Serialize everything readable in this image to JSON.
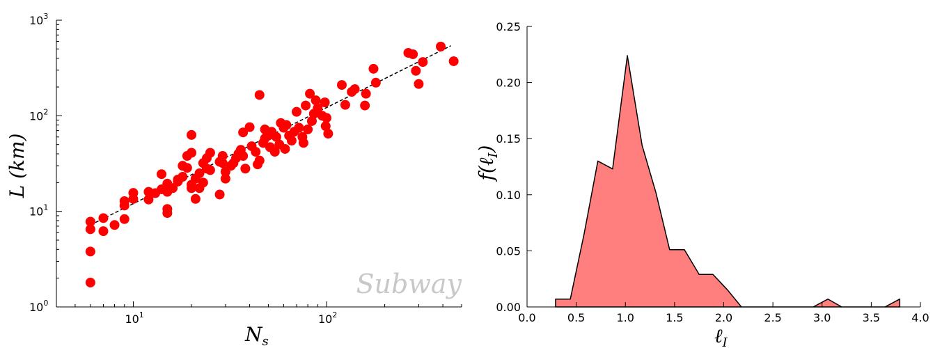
{
  "chart_data": [
    {
      "type": "scatter",
      "watermark": "Subway",
      "xlabel": "N_s",
      "ylabel": "L (km)",
      "xscale": "log",
      "yscale": "log",
      "xlim": [
        4,
        500
      ],
      "ylim": [
        1,
        1000
      ],
      "x_ticks": [
        {
          "base": "10",
          "exp": "1",
          "value": 10
        },
        {
          "base": "10",
          "exp": "2",
          "value": 100
        }
      ],
      "y_ticks": [
        {
          "base": "10",
          "exp": "0",
          "value": 1
        },
        {
          "base": "10",
          "exp": "1",
          "value": 10
        },
        {
          "base": "10",
          "exp": "2",
          "value": 100
        },
        {
          "base": "10",
          "exp": "3",
          "value": 1000
        }
      ],
      "marker_color": "#ff0000",
      "fit_line": {
        "style": "dashed",
        "color": "#000000",
        "x": [
          6,
          440
        ],
        "y": [
          7.2,
          540
        ]
      },
      "points": [
        [
          6,
          1.8
        ],
        [
          6,
          3.8
        ],
        [
          6,
          6.5
        ],
        [
          6,
          7.8
        ],
        [
          7,
          6.2
        ],
        [
          7,
          8.5
        ],
        [
          8,
          7.2
        ],
        [
          9,
          8.3
        ],
        [
          9,
          11.5
        ],
        [
          9,
          12.8
        ],
        [
          10,
          13.5
        ],
        [
          10,
          15.6
        ],
        [
          12,
          13.3
        ],
        [
          12,
          16
        ],
        [
          13,
          15.5
        ],
        [
          14,
          24.5
        ],
        [
          14,
          17
        ],
        [
          15,
          9.6
        ],
        [
          15,
          10.6
        ],
        [
          15,
          16
        ],
        [
          15,
          19.5
        ],
        [
          16,
          17.5
        ],
        [
          17,
          20.5
        ],
        [
          17,
          21.5
        ],
        [
          18,
          23
        ],
        [
          18,
          30
        ],
        [
          19,
          28.5
        ],
        [
          19,
          38
        ],
        [
          20,
          19
        ],
        [
          20,
          17.5
        ],
        [
          20,
          41
        ],
        [
          20,
          63
        ],
        [
          21,
          13.5
        ],
        [
          21,
          22
        ],
        [
          22,
          25
        ],
        [
          22,
          17.5
        ],
        [
          23,
          20
        ],
        [
          23,
          32
        ],
        [
          24,
          28
        ],
        [
          24,
          36
        ],
        [
          25,
          41
        ],
        [
          25,
          27
        ],
        [
          28,
          15
        ],
        [
          28,
          33
        ],
        [
          29,
          38
        ],
        [
          29,
          32
        ],
        [
          30,
          22
        ],
        [
          30,
          26
        ],
        [
          32,
          30
        ],
        [
          33,
          32
        ],
        [
          34,
          36
        ],
        [
          35,
          40
        ],
        [
          36,
          44
        ],
        [
          37,
          38
        ],
        [
          37,
          67
        ],
        [
          38,
          28
        ],
        [
          40,
          76
        ],
        [
          41,
          48
        ],
        [
          43,
          42
        ],
        [
          44,
          31
        ],
        [
          45,
          165
        ],
        [
          45,
          34
        ],
        [
          47,
          52
        ],
        [
          48,
          58
        ],
        [
          48,
          72
        ],
        [
          50,
          62
        ],
        [
          51,
          47
        ],
        [
          52,
          68
        ],
        [
          54,
          42
        ],
        [
          55,
          60
        ],
        [
          57,
          50
        ],
        [
          58,
          84
        ],
        [
          60,
          75
        ],
        [
          61,
          45
        ],
        [
          62,
          80
        ],
        [
          64,
          62
        ],
        [
          66,
          55
        ],
        [
          68,
          68
        ],
        [
          70,
          110
        ],
        [
          72,
          75
        ],
        [
          75,
          60
        ],
        [
          76,
          52
        ],
        [
          78,
          128
        ],
        [
          80,
          72
        ],
        [
          82,
          170
        ],
        [
          84,
          88
        ],
        [
          86,
          105
        ],
        [
          88,
          145
        ],
        [
          90,
          120
        ],
        [
          95,
          100
        ],
        [
          98,
          138
        ],
        [
          99,
          78
        ],
        [
          100,
          95
        ],
        [
          102,
          65
        ],
        [
          120,
          210
        ],
        [
          125,
          130
        ],
        [
          135,
          178
        ],
        [
          140,
          190
        ],
        [
          158,
          128
        ],
        [
          160,
          170
        ],
        [
          175,
          310
        ],
        [
          180,
          222
        ],
        [
          265,
          455
        ],
        [
          280,
          440
        ],
        [
          290,
          295
        ],
        [
          300,
          215
        ],
        [
          315,
          365
        ],
        [
          390,
          530
        ],
        [
          455,
          372
        ]
      ]
    },
    {
      "type": "area",
      "xlabel": "ℓ_I",
      "ylabel": "f(ℓ_I)",
      "xlim": [
        0.0,
        4.0
      ],
      "ylim": [
        0.0,
        0.25
      ],
      "x_tick_labels": [
        "0.0",
        "0.5",
        "1.0",
        "1.5",
        "2.0",
        "2.5",
        "3.0",
        "3.5",
        "4.0"
      ],
      "y_tick_labels": [
        "0.00",
        "0.05",
        "0.10",
        "0.15",
        "0.20",
        "0.25"
      ],
      "fill_color": "#ff7f7f",
      "x": [
        0.29,
        0.44,
        0.58,
        0.72,
        0.87,
        1.02,
        1.17,
        1.31,
        1.45,
        1.6,
        1.75,
        1.89,
        2.04,
        2.18,
        2.33,
        2.91,
        3.06,
        3.2,
        3.64,
        3.79
      ],
      "y": [
        0.007,
        0.007,
        0.065,
        0.13,
        0.123,
        0.224,
        0.144,
        0.102,
        0.051,
        0.051,
        0.029,
        0.029,
        0.015,
        0.0,
        0.0,
        0.0,
        0.007,
        0.0,
        0.0,
        0.007
      ]
    }
  ]
}
